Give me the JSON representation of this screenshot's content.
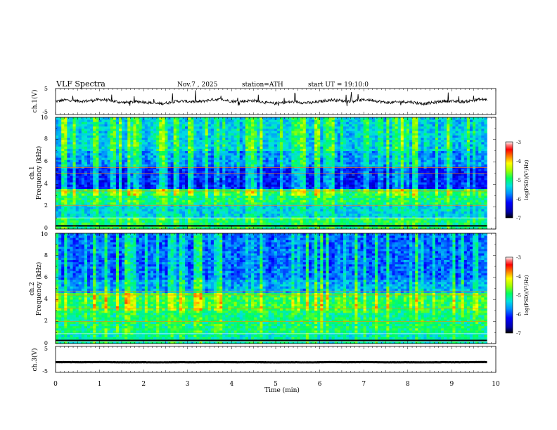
{
  "header": {
    "title": "VLF Spectra",
    "date": "Nov.7 , 2025",
    "station": "station=ATH",
    "start": "start UT = 19:10:0"
  },
  "chart_data": {
    "type": "heatmap",
    "x": {
      "label": "Time (min)",
      "range": [
        0,
        10
      ],
      "ticks": [
        "0",
        "1",
        "2",
        "3",
        "4",
        "5",
        "6",
        "7",
        "8",
        "9",
        "10"
      ]
    },
    "waveform_ch1": {
      "ylabel": "ch.1(V)",
      "ylim": [
        -5,
        5
      ],
      "ticks": [
        "5",
        "-5"
      ],
      "baseline": 0.0,
      "time_end": 9.8
    },
    "spectrogram_ch1": {
      "ylabel_channel": "ch.1",
      "ylabel": "Frequency (kHz)",
      "ylim": [
        0,
        10
      ],
      "ticks": [
        "0",
        "2",
        "4",
        "6",
        "8",
        "10"
      ],
      "time_end": 9.8,
      "colorbar": {
        "label": "log(PSD)(V²/Hz)",
        "range": [
          -7,
          -3
        ],
        "ticks": [
          "-3",
          "-4",
          "-5",
          "-6",
          "-7"
        ]
      }
    },
    "spectrogram_ch2": {
      "ylabel_channel": "ch.2",
      "ylabel": "Frequency (kHz)",
      "ylim": [
        0,
        10
      ],
      "ticks": [
        "0",
        "2",
        "4",
        "6",
        "8",
        "10"
      ],
      "time_end": 9.8,
      "colorbar": {
        "label": "log(PSD)(V²/Hz)",
        "range": [
          -7,
          -3
        ],
        "ticks": [
          "-3",
          "-4",
          "-5",
          "-6",
          "-7"
        ]
      }
    },
    "waveform_ch3": {
      "ylabel": "ch.3(V)",
      "ylim": [
        -5,
        5
      ],
      "ticks": [
        "5",
        "-5"
      ],
      "baseline": -1.1,
      "time_end": 9.8
    }
  }
}
